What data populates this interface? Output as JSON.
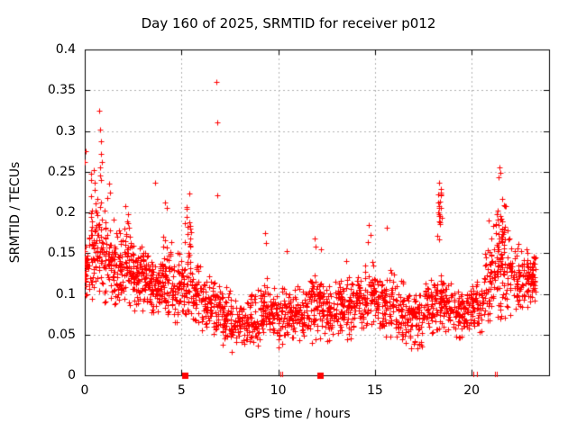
{
  "title": "Day 160 of 2025, SRMTID for receiver p012",
  "axes": {
    "xlabel": "GPS time / hours",
    "ylabel": "SRMTID / TECUs",
    "xlim": [
      0,
      24
    ],
    "ylim": [
      0,
      0.4
    ],
    "xticks": {
      "values": [
        0,
        5,
        10,
        15,
        20
      ],
      "labels": [
        "0",
        "5",
        "10",
        "15",
        "20"
      ]
    },
    "yticks": {
      "values": [
        0,
        0.05,
        0.1,
        0.15,
        0.2,
        0.25,
        0.3,
        0.35,
        0.4
      ],
      "labels": [
        "0",
        "0.05",
        "0.1",
        "0.15",
        "0.2",
        "0.25",
        "0.3",
        "0.35",
        "0.4"
      ]
    },
    "grid": true
  },
  "style": {
    "marker": "plus",
    "marker_color": "#ff0000",
    "marker_size": 7,
    "grid_color": "#b0b0b0",
    "border_color": "#000000",
    "text_color": "#000000",
    "background": "#ffffff"
  },
  "chart_data": {
    "type": "scatter",
    "series_name": "SRMTID for receiver p012, day 160 of 2025",
    "x_unit": "hours",
    "y_unit": "TECUs",
    "seed": 2025160,
    "density_bins": [
      [
        0.0,
        0.08,
        22,
        0.09,
        0.16
      ],
      [
        0.05,
        0.5,
        40,
        0.085,
        0.185
      ],
      [
        0.3,
        0.9,
        28,
        0.15,
        0.26
      ],
      [
        0.5,
        1.0,
        45,
        0.08,
        0.22
      ],
      [
        1.0,
        1.5,
        55,
        0.08,
        0.21
      ],
      [
        1.5,
        2.0,
        55,
        0.07,
        0.185
      ],
      [
        2.0,
        2.5,
        55,
        0.075,
        0.195
      ],
      [
        2.5,
        3.0,
        60,
        0.075,
        0.165
      ],
      [
        3.0,
        3.5,
        60,
        0.07,
        0.165
      ],
      [
        3.5,
        4.0,
        55,
        0.065,
        0.155
      ],
      [
        4.0,
        4.5,
        55,
        0.07,
        0.175
      ],
      [
        4.5,
        5.0,
        50,
        0.06,
        0.155
      ],
      [
        5.0,
        5.5,
        45,
        0.06,
        0.15
      ],
      [
        5.15,
        5.5,
        18,
        0.12,
        0.215
      ],
      [
        5.5,
        6.0,
        45,
        0.05,
        0.145
      ],
      [
        6.0,
        6.5,
        45,
        0.05,
        0.13
      ],
      [
        6.5,
        7.0,
        45,
        0.04,
        0.125
      ],
      [
        7.0,
        7.5,
        45,
        0.03,
        0.11
      ],
      [
        7.5,
        8.0,
        42,
        0.025,
        0.1
      ],
      [
        8.0,
        8.5,
        40,
        0.025,
        0.1
      ],
      [
        8.5,
        9.0,
        42,
        0.03,
        0.11
      ],
      [
        9.0,
        9.5,
        45,
        0.04,
        0.125
      ],
      [
        9.5,
        10.0,
        45,
        0.04,
        0.115
      ],
      [
        10.0,
        10.5,
        45,
        0.03,
        0.115
      ],
      [
        10.5,
        11.0,
        45,
        0.04,
        0.11
      ],
      [
        11.0,
        11.5,
        45,
        0.04,
        0.115
      ],
      [
        11.5,
        12.0,
        45,
        0.03,
        0.14
      ],
      [
        12.0,
        12.5,
        45,
        0.04,
        0.125
      ],
      [
        12.5,
        13.0,
        45,
        0.04,
        0.12
      ],
      [
        13.0,
        13.5,
        48,
        0.045,
        0.125
      ],
      [
        13.5,
        14.0,
        48,
        0.04,
        0.13
      ],
      [
        14.0,
        14.5,
        48,
        0.05,
        0.135
      ],
      [
        14.5,
        15.0,
        48,
        0.05,
        0.15
      ],
      [
        15.0,
        15.5,
        45,
        0.045,
        0.13
      ],
      [
        15.5,
        16.0,
        45,
        0.04,
        0.135
      ],
      [
        16.0,
        16.5,
        45,
        0.04,
        0.12
      ],
      [
        16.5,
        17.0,
        45,
        0.03,
        0.11
      ],
      [
        17.0,
        17.5,
        45,
        0.03,
        0.11
      ],
      [
        17.5,
        18.0,
        45,
        0.04,
        0.12
      ],
      [
        18.0,
        18.5,
        45,
        0.05,
        0.13
      ],
      [
        18.2,
        18.45,
        20,
        0.16,
        0.235
      ],
      [
        18.5,
        19.0,
        45,
        0.05,
        0.125
      ],
      [
        19.0,
        19.5,
        45,
        0.04,
        0.11
      ],
      [
        19.5,
        20.0,
        45,
        0.045,
        0.11
      ],
      [
        20.0,
        20.5,
        45,
        0.05,
        0.12
      ],
      [
        20.5,
        21.0,
        45,
        0.05,
        0.165
      ],
      [
        21.0,
        21.5,
        48,
        0.06,
        0.19
      ],
      [
        21.3,
        21.75,
        30,
        0.13,
        0.235
      ],
      [
        21.5,
        22.0,
        45,
        0.07,
        0.185
      ],
      [
        22.0,
        22.5,
        45,
        0.07,
        0.165
      ],
      [
        22.5,
        23.0,
        45,
        0.075,
        0.16
      ],
      [
        23.0,
        23.3,
        40,
        0.08,
        0.155
      ]
    ],
    "outlier_points": [
      [
        0.02,
        0.262
      ],
      [
        0.03,
        0.275
      ],
      [
        0.75,
        0.325
      ],
      [
        0.8,
        0.302
      ],
      [
        0.83,
        0.287
      ],
      [
        0.85,
        0.272
      ],
      [
        0.88,
        0.262
      ],
      [
        0.8,
        0.255
      ],
      [
        0.78,
        0.245
      ],
      [
        0.85,
        0.24
      ],
      [
        1.25,
        0.235
      ],
      [
        1.3,
        0.224
      ],
      [
        1.15,
        0.218
      ],
      [
        2.1,
        0.208
      ],
      [
        2.25,
        0.198
      ],
      [
        3.65,
        0.237
      ],
      [
        4.15,
        0.212
      ],
      [
        4.22,
        0.205
      ],
      [
        5.4,
        0.223
      ],
      [
        6.82,
        0.36
      ],
      [
        6.85,
        0.31
      ],
      [
        6.87,
        0.221
      ],
      [
        9.3,
        0.175
      ],
      [
        9.35,
        0.162
      ],
      [
        10.45,
        0.152
      ],
      [
        11.9,
        0.168
      ],
      [
        11.95,
        0.158
      ],
      [
        12.2,
        0.155
      ],
      [
        13.5,
        0.14
      ],
      [
        14.7,
        0.185
      ],
      [
        14.75,
        0.172
      ],
      [
        14.65,
        0.163
      ],
      [
        15.62,
        0.181
      ],
      [
        18.3,
        0.237
      ],
      [
        20.9,
        0.19
      ],
      [
        21.42,
        0.255
      ],
      [
        21.47,
        0.249
      ],
      [
        21.4,
        0.243
      ]
    ],
    "zero_cluster_squares_x": [
      5.15,
      12.15
    ],
    "near_zero_points_x": [
      10.1,
      10.2,
      20.1,
      20.25,
      21.2,
      21.3
    ],
    "y_max_observed": 0.36,
    "x_data_end": 23.3
  }
}
